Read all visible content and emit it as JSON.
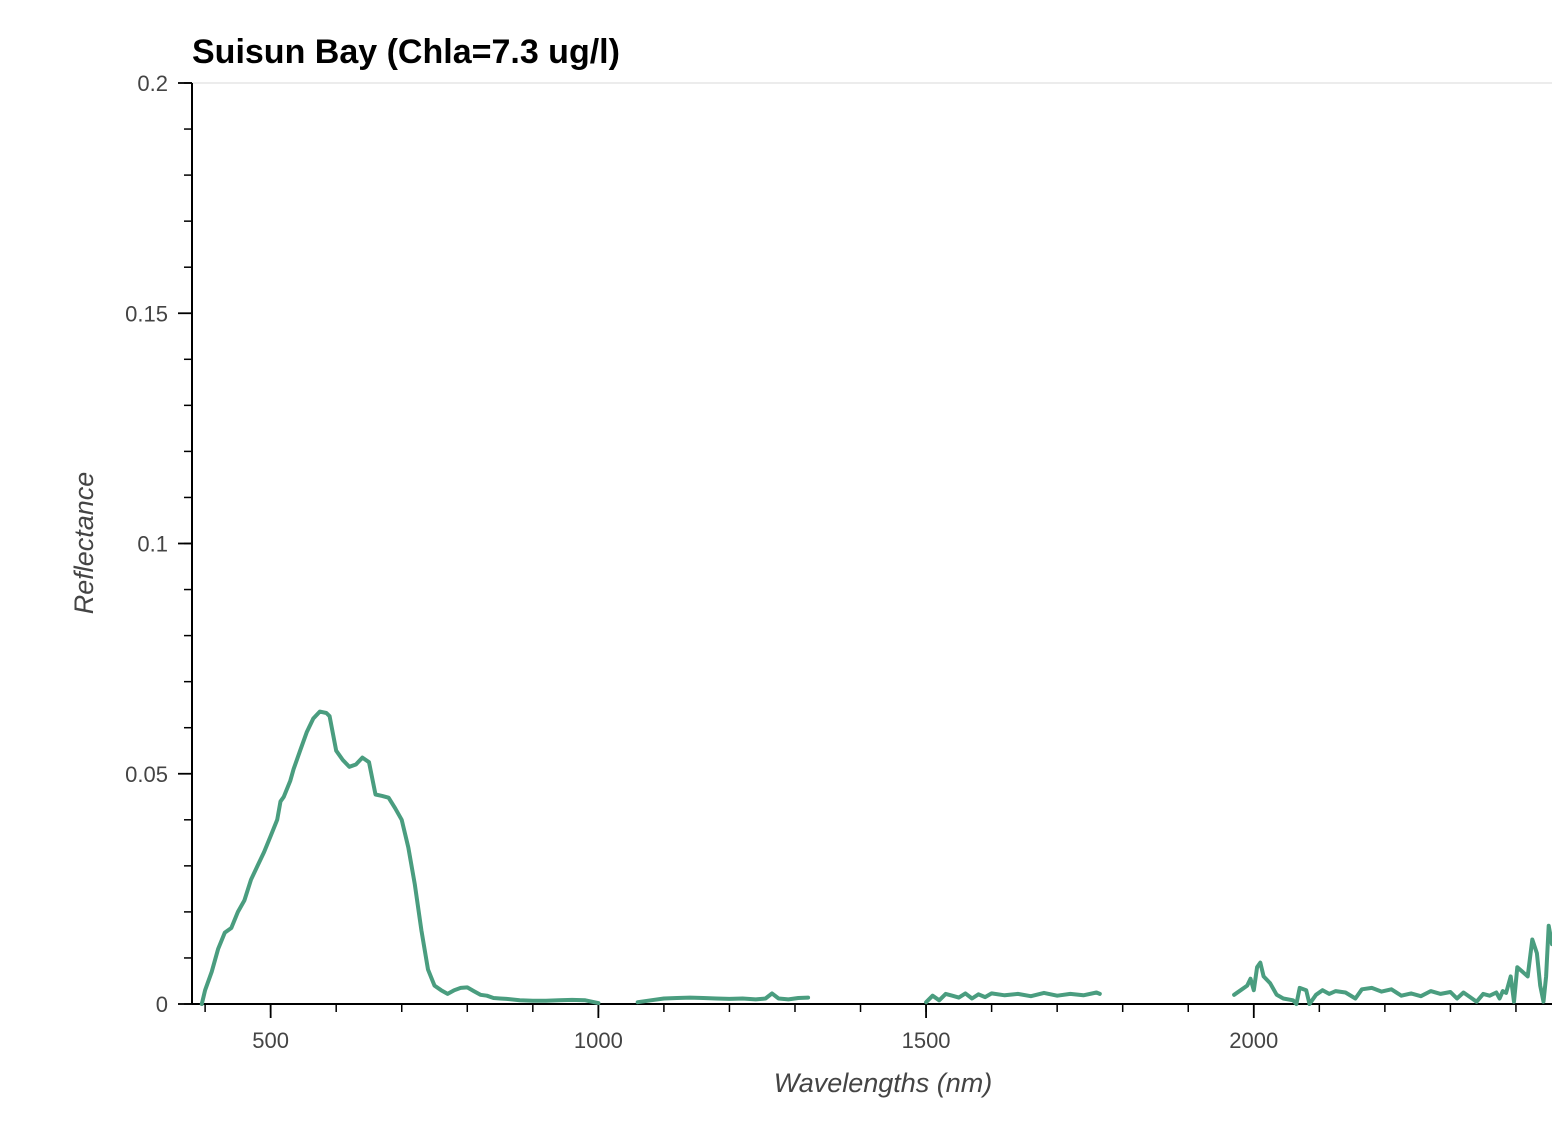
{
  "chart_data": {
    "type": "line",
    "title": "Suisun Bay (Chla=7.3 ug/l)",
    "xlabel": "Wavelengths (nm)",
    "ylabel": "Reflectance",
    "xlim": [
      380,
      2455
    ],
    "ylim": [
      0,
      0.2
    ],
    "x_ticks": [
      {
        "value": 500,
        "label": "500"
      },
      {
        "value": 1000,
        "label": "1000"
      },
      {
        "value": 1500,
        "label": "1500"
      },
      {
        "value": 2000,
        "label": "2000"
      }
    ],
    "y_ticks": [
      {
        "value": 0,
        "label": "0"
      },
      {
        "value": 0.05,
        "label": "0.05"
      },
      {
        "value": 0.1,
        "label": "0.1"
      },
      {
        "value": 0.15,
        "label": "0.15"
      },
      {
        "value": 0.2,
        "label": "0.2"
      }
    ],
    "x_minor_step": 100,
    "y_minor_step": 0.01,
    "grid": false,
    "legend": "none",
    "colors": {
      "line": "#4a9d7f",
      "axis": "#000000",
      "top_border": "#e5e5e5"
    },
    "series": [
      {
        "segments": [
          [
            [
              395,
              0
            ],
            [
              400,
              0.003
            ],
            [
              410,
              0.007
            ],
            [
              420,
              0.012
            ],
            [
              430,
              0.0155
            ],
            [
              440,
              0.0165
            ],
            [
              450,
              0.02
            ],
            [
              460,
              0.0225
            ],
            [
              470,
              0.027
            ],
            [
              480,
              0.03
            ],
            [
              490,
              0.033
            ],
            [
              500,
              0.0365
            ],
            [
              510,
              0.04
            ],
            [
              515,
              0.044
            ],
            [
              520,
              0.045
            ],
            [
              530,
              0.0485
            ],
            [
              535,
              0.051
            ],
            [
              545,
              0.055
            ],
            [
              555,
              0.059
            ],
            [
              565,
              0.062
            ],
            [
              575,
              0.0635
            ],
            [
              585,
              0.0632
            ],
            [
              590,
              0.0625
            ],
            [
              600,
              0.055
            ],
            [
              610,
              0.053
            ],
            [
              620,
              0.0515
            ],
            [
              630,
              0.052
            ],
            [
              640,
              0.0535
            ],
            [
              650,
              0.0525
            ],
            [
              660,
              0.0455
            ],
            [
              670,
              0.0452
            ],
            [
              680,
              0.0448
            ],
            [
              690,
              0.0425
            ],
            [
              700,
              0.04
            ],
            [
              710,
              0.034
            ],
            [
              720,
              0.026
            ],
            [
              730,
              0.016
            ],
            [
              740,
              0.0075
            ],
            [
              750,
              0.004
            ],
            [
              760,
              0.003
            ],
            [
              770,
              0.0022
            ],
            [
              780,
              0.003
            ],
            [
              790,
              0.0035
            ],
            [
              800,
              0.0036
            ],
            [
              810,
              0.0028
            ],
            [
              820,
              0.002
            ],
            [
              830,
              0.0018
            ],
            [
              840,
              0.0013
            ],
            [
              850,
              0.0012
            ],
            [
              860,
              0.0011
            ],
            [
              880,
              0.0008
            ],
            [
              900,
              0.0007
            ],
            [
              920,
              0.0007
            ],
            [
              940,
              0.0008
            ],
            [
              960,
              0.0009
            ],
            [
              980,
              0.0008
            ],
            [
              1000,
              0.0002
            ]
          ],
          [
            [
              1060,
              0.0004
            ],
            [
              1080,
              0.0008
            ],
            [
              1100,
              0.0012
            ],
            [
              1120,
              0.0013
            ],
            [
              1140,
              0.0014
            ],
            [
              1160,
              0.0013
            ],
            [
              1180,
              0.0012
            ],
            [
              1200,
              0.0011
            ],
            [
              1220,
              0.0012
            ],
            [
              1240,
              0.001
            ],
            [
              1255,
              0.0012
            ],
            [
              1265,
              0.0023
            ],
            [
              1275,
              0.0012
            ],
            [
              1290,
              0.001
            ],
            [
              1305,
              0.0013
            ],
            [
              1320,
              0.0014
            ]
          ],
          [
            [
              1500,
              0.0004
            ],
            [
              1510,
              0.0018
            ],
            [
              1520,
              0.0008
            ],
            [
              1530,
              0.0022
            ],
            [
              1540,
              0.0018
            ],
            [
              1550,
              0.0014
            ],
            [
              1560,
              0.0023
            ],
            [
              1570,
              0.0012
            ],
            [
              1580,
              0.0021
            ],
            [
              1590,
              0.0015
            ],
            [
              1600,
              0.0023
            ],
            [
              1620,
              0.0019
            ],
            [
              1640,
              0.0022
            ],
            [
              1660,
              0.0017
            ],
            [
              1680,
              0.0024
            ],
            [
              1700,
              0.0018
            ],
            [
              1720,
              0.0022
            ],
            [
              1740,
              0.0019
            ],
            [
              1760,
              0.0025
            ],
            [
              1765,
              0.0022
            ]
          ],
          [
            [
              1970,
              0.002
            ],
            [
              1980,
              0.003
            ],
            [
              1990,
              0.004
            ],
            [
              1995,
              0.0055
            ],
            [
              2000,
              0.003
            ],
            [
              2005,
              0.008
            ],
            [
              2010,
              0.009
            ],
            [
              2015,
              0.006
            ],
            [
              2025,
              0.0045
            ],
            [
              2035,
              0.002
            ],
            [
              2045,
              0.0012
            ],
            [
              2060,
              0.0008
            ],
            [
              2065,
              0
            ],
            [
              2070,
              0.0035
            ],
            [
              2080,
              0.003
            ],
            [
              2085,
              0
            ],
            [
              2095,
              0.002
            ],
            [
              2105,
              0.003
            ],
            [
              2115,
              0.0022
            ],
            [
              2125,
              0.0028
            ],
            [
              2140,
              0.0025
            ],
            [
              2155,
              0.0012
            ],
            [
              2165,
              0.0032
            ],
            [
              2180,
              0.0035
            ],
            [
              2195,
              0.0027
            ],
            [
              2210,
              0.0032
            ],
            [
              2225,
              0.0018
            ],
            [
              2240,
              0.0023
            ],
            [
              2255,
              0.0017
            ],
            [
              2270,
              0.0028
            ],
            [
              2285,
              0.0022
            ],
            [
              2300,
              0.0026
            ],
            [
              2310,
              0.0012
            ],
            [
              2320,
              0.0025
            ],
            [
              2330,
              0.0015
            ],
            [
              2340,
              0.0005
            ],
            [
              2350,
              0.0022
            ],
            [
              2360,
              0.0018
            ],
            [
              2370,
              0.0025
            ],
            [
              2375,
              0.0012
            ],
            [
              2380,
              0.0028
            ],
            [
              2385,
              0.0024
            ],
            [
              2392,
              0.006
            ],
            [
              2397,
              0.0005
            ],
            [
              2402,
              0.008
            ],
            [
              2410,
              0.007
            ],
            [
              2418,
              0.006
            ],
            [
              2425,
              0.014
            ],
            [
              2432,
              0.011
            ],
            [
              2437,
              0.004
            ],
            [
              2442,
              0.0005
            ],
            [
              2446,
              0.006
            ],
            [
              2450,
              0.017
            ],
            [
              2455,
              0.013
            ]
          ]
        ]
      }
    ]
  }
}
